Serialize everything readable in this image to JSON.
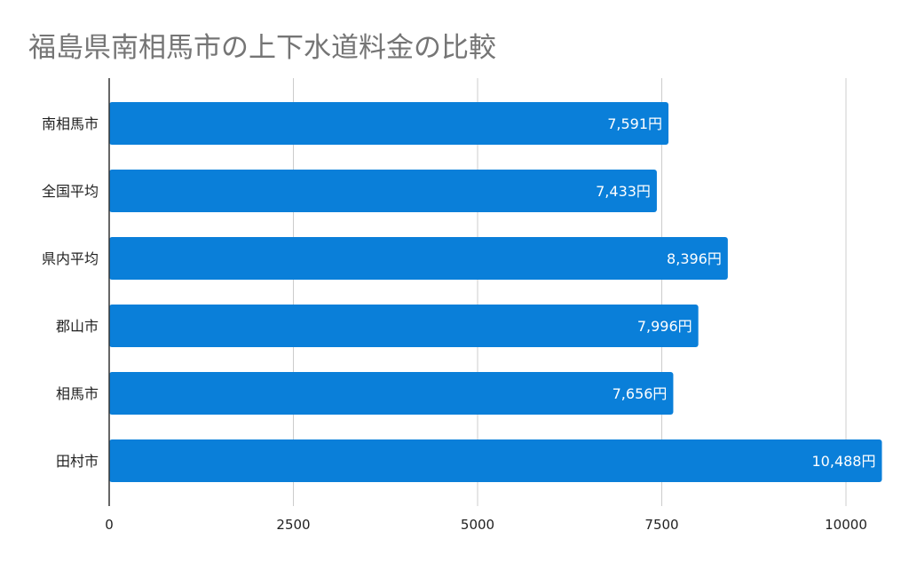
{
  "chart_data": {
    "type": "bar",
    "orientation": "horizontal",
    "title": "福島県南相馬市の上下水道料金の比較",
    "xlabel": "",
    "ylabel": "",
    "categories": [
      "南相馬市",
      "全国平均",
      "県内平均",
      "郡山市",
      "相馬市",
      "田村市"
    ],
    "values": [
      7591,
      7433,
      8396,
      7996,
      7656,
      10488
    ],
    "data_labels": [
      "7,591円",
      "7,433円",
      "8,396円",
      "7,996円",
      "7,656円",
      "10,488円"
    ],
    "xlim": [
      0,
      10500
    ],
    "xticks": [
      0,
      2500,
      5000,
      7500,
      10000
    ],
    "xtick_labels": [
      "0",
      "2500",
      "5000",
      "7500",
      "10000"
    ],
    "grid": "vertical",
    "legend": "none",
    "bar_color": "#0a7fd9"
  }
}
